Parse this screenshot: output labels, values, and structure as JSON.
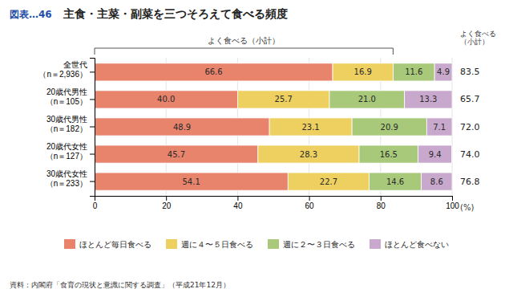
{
  "chart_data": {
    "type": "bar",
    "orientation": "horizontal",
    "stacked": true,
    "data_labels": true,
    "grid": true,
    "fig_label": "図表…46",
    "title": "主食・主菜・副菜を三つそろえて食べる頻度",
    "xlabel": "(%)",
    "categories": [
      "全世代\n（n＝2,936）",
      "20歳代男性\n（n＝105）",
      "30歳代男性\n（n＝182）",
      "20歳代女性\n（n＝127）",
      "30歳代女性\n（n＝233）"
    ],
    "series": [
      {
        "name": "ほとんど毎日食べる",
        "color": "#E8836C",
        "values": [
          66.6,
          40.0,
          48.9,
          45.7,
          54.1
        ],
        "value_labels": [
          "66.6",
          "40.0",
          "48.9",
          "45.7",
          "54.1"
        ]
      },
      {
        "name": "週に４〜５日食べる",
        "color": "#EDD060",
        "values": [
          16.9,
          25.7,
          23.1,
          28.3,
          22.7
        ],
        "value_labels": [
          "16.9",
          "25.7",
          "23.1",
          "28.3",
          "22.7"
        ]
      },
      {
        "name": "週に２〜３日食べる",
        "color": "#A8C87A",
        "values": [
          11.6,
          21.0,
          20.9,
          16.5,
          14.6
        ],
        "value_labels": [
          "11.6",
          "21.0",
          "20.9",
          "16.5",
          "14.6"
        ]
      },
      {
        "name": "ほとんど食べない",
        "color": "#C8A8CC",
        "values": [
          4.9,
          13.3,
          7.1,
          9.4,
          8.6
        ],
        "value_labels": [
          "4.9",
          "13.3",
          "7.1",
          "9.4",
          "8.6"
        ]
      }
    ],
    "subtotals": [
      83.5,
      65.7,
      72.0,
      74.0,
      76.8
    ],
    "subtotal_labels": [
      "83.5",
      "65.7",
      "72.0",
      "74.0",
      "76.8"
    ],
    "subtotal_label": "よく食べる\n（小計）",
    "brace_label": "よく食べる（小計）",
    "brace_x_end": 83.5,
    "xlim": [
      0,
      100
    ],
    "xticks": [
      0,
      20,
      40,
      60,
      80,
      100
    ],
    "source": "資料：内閣府「食育の現状と意識に関する調査」（平成21年12月）"
  }
}
